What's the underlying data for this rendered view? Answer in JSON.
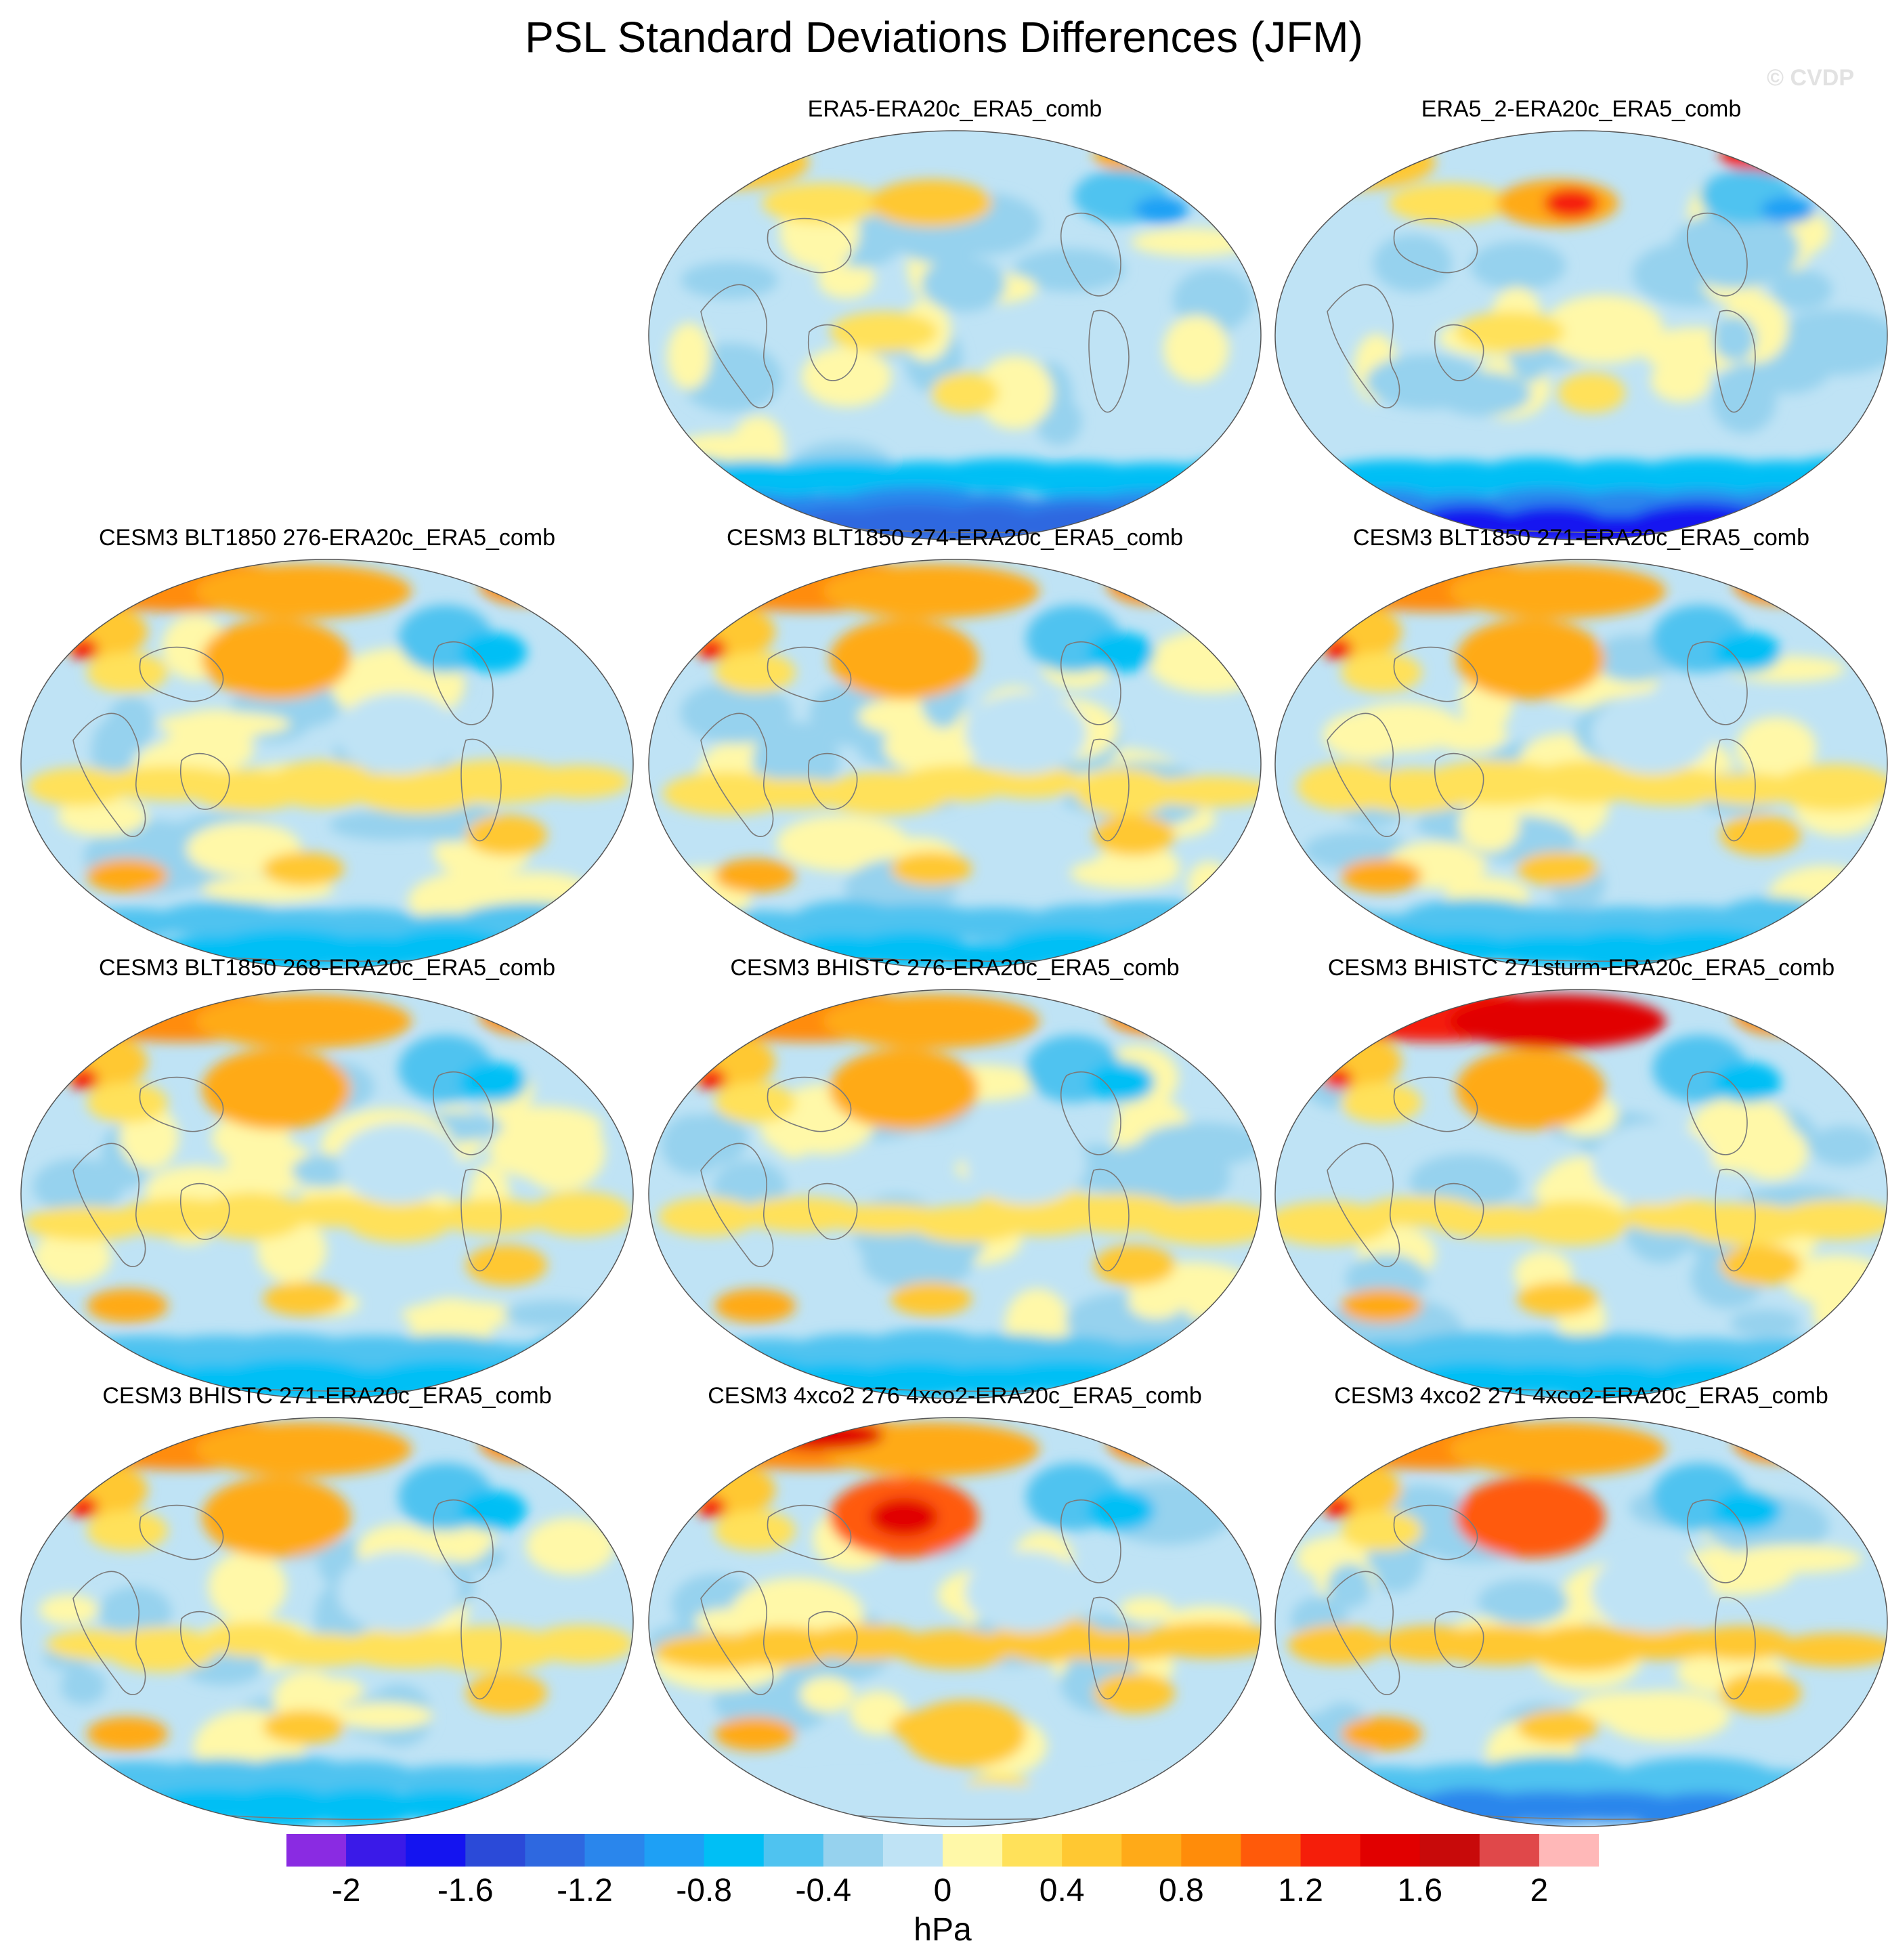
{
  "title": "PSL Standard Deviations Differences (JFM)",
  "watermark": "© CVDP",
  "panels": [
    {
      "label": "ERA5-ERA20c_ERA5_comb",
      "pattern": "obs"
    },
    {
      "label": "ERA5_2-ERA20c_ERA5_comb",
      "pattern": "obs2"
    },
    {
      "label": "CESM3 BLT1850 276-ERA20c_ERA5_comb",
      "pattern": "model"
    },
    {
      "label": "CESM3 BLT1850 274-ERA20c_ERA5_comb",
      "pattern": "model"
    },
    {
      "label": "CESM3 BLT1850 271-ERA20c_ERA5_comb",
      "pattern": "model"
    },
    {
      "label": "CESM3 BLT1850 268-ERA20c_ERA5_comb",
      "pattern": "model"
    },
    {
      "label": "CESM3 BHISTC 276-ERA20c_ERA5_comb",
      "pattern": "model"
    },
    {
      "label": "CESM3 BHISTC 271sturm-ERA20c_ERA5_comb",
      "pattern": "model-strong"
    },
    {
      "label": "CESM3 BHISTC 271-ERA20c_ERA5_comb",
      "pattern": "model"
    },
    {
      "label": "CESM3 4xco2 276 4xco2-ERA20c_ERA5_comb",
      "pattern": "co2"
    },
    {
      "label": "CESM3 4xco2 271 4xco2-ERA20c_ERA5_comb",
      "pattern": "co2-271"
    }
  ],
  "colorbar": {
    "units": "hPa",
    "tick_labels": [
      "-2",
      "-1.6",
      "-1.2",
      "-0.8",
      "-0.4",
      "0",
      "0.4",
      "0.8",
      "1.2",
      "1.6",
      "2"
    ],
    "colors": [
      "#8a2be2",
      "#3a1ae8",
      "#1414f0",
      "#2b4ad8",
      "#2e68e0",
      "#2a86ec",
      "#1ea0f5",
      "#00bff5",
      "#4fc3f0",
      "#96d2ee",
      "#bfe3f5",
      "#fff8a8",
      "#ffe15a",
      "#ffc832",
      "#ffaa18",
      "#ff8c0a",
      "#ff5a0a",
      "#f51e0a",
      "#e10000",
      "#c80a0a",
      "#e0484a",
      "#ffb8b8"
    ]
  }
}
